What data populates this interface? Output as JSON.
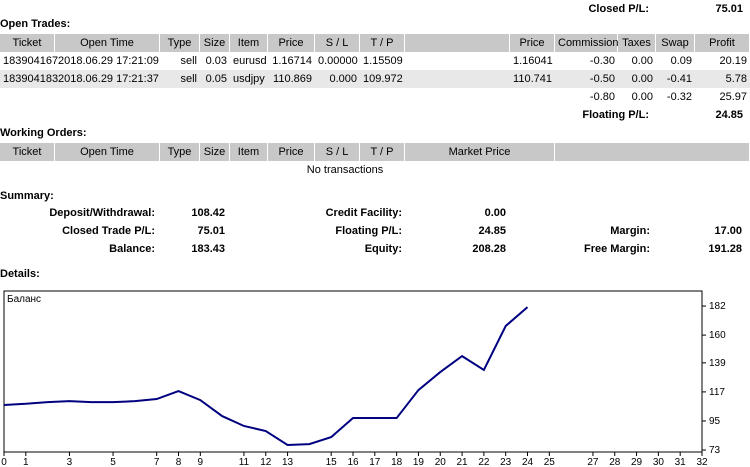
{
  "header": {
    "closed_pl_label": "Closed P/L:",
    "closed_pl": "75.01"
  },
  "open_trades": {
    "title": "Open Trades:",
    "columns": [
      "Ticket",
      "Open Time",
      "Type",
      "Size",
      "Item",
      "Price",
      "S / L",
      "T / P",
      "Price",
      "Commission",
      "Taxes",
      "Swap",
      "Profit"
    ],
    "rows": [
      [
        "183904167",
        "2018.06.29 17:21:09",
        "sell",
        "0.03",
        "eurusd",
        "1.16714",
        "0.00000",
        "1.15509",
        "1.16041",
        "-0.30",
        "0.00",
        "0.09",
        "20.19"
      ],
      [
        "183904183",
        "2018.06.29 17:21:37",
        "sell",
        "0.05",
        "usdjpy",
        "110.869",
        "0.000",
        "109.972",
        "110.741",
        "-0.50",
        "0.00",
        "-0.41",
        "5.78"
      ]
    ],
    "totals": [
      "-0.80",
      "0.00",
      "-0.32",
      "25.97"
    ],
    "floating_label": "Floating P/L:",
    "floating": "24.85"
  },
  "working_orders": {
    "title": "Working Orders:",
    "columns": [
      "Ticket",
      "Open Time",
      "Type",
      "Size",
      "Item",
      "Price",
      "S / L",
      "T / P",
      "Market Price"
    ],
    "empty_text": "No transactions"
  },
  "summary": {
    "title": "Summary:",
    "rows": [
      [
        {
          "label": "Deposit/Withdrawal:",
          "value": "108.42"
        },
        {
          "label": "Credit Facility:",
          "value": "0.00"
        }
      ],
      [
        {
          "label": "Closed Trade P/L:",
          "value": "75.01"
        },
        {
          "label": "Floating P/L:",
          "value": "24.85"
        },
        {
          "label": "Margin:",
          "value": "17.00"
        }
      ],
      [
        {
          "label": "Balance:",
          "value": "183.43"
        },
        {
          "label": "Equity:",
          "value": "208.28"
        },
        {
          "label": "Free Margin:",
          "value": "191.28"
        }
      ]
    ]
  },
  "details": {
    "title": "Details:"
  },
  "chart_data": {
    "type": "line",
    "x": [
      0,
      1,
      2,
      3,
      4,
      5,
      6,
      7,
      8,
      9,
      10,
      11,
      12,
      13,
      14,
      15,
      16,
      17,
      18,
      19,
      20,
      21,
      22,
      23,
      24
    ],
    "series": [
      {
        "name": "Баланс",
        "color": "#000080",
        "values": [
          107.1,
          108,
          109.3,
          110,
          109.3,
          109.3,
          110,
          111.6,
          117.6,
          110.8,
          98.7,
          91.2,
          87.4,
          76.8,
          77.5,
          82.8,
          97.2,
          97.2,
          97.2,
          118.4,
          132,
          144.1,
          133.6,
          166.9,
          181.2
        ]
      }
    ],
    "xlim": [
      0,
      32
    ],
    "xticks": [
      0,
      1,
      3,
      5,
      7,
      8,
      9,
      11,
      12,
      13,
      15,
      16,
      17,
      18,
      19,
      20,
      21,
      22,
      23,
      24,
      25,
      27,
      28,
      29,
      30,
      31,
      32
    ],
    "ylim": [
      71.5,
      193.4
    ],
    "yticks": [
      73,
      95,
      117,
      139,
      160,
      182
    ]
  }
}
